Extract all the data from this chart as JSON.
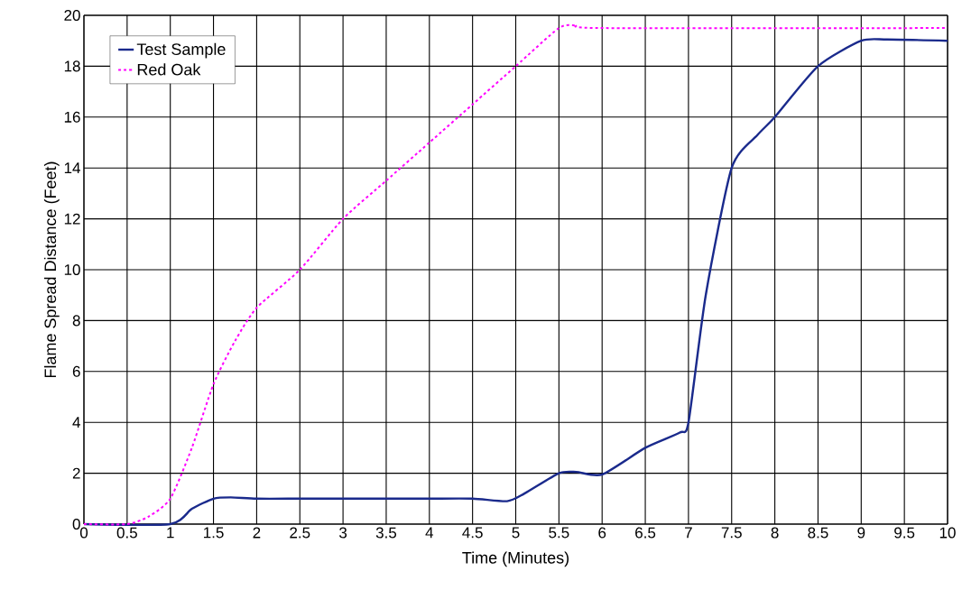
{
  "chart_data": {
    "type": "line",
    "xlabel": "Time (Minutes)",
    "ylabel": "Flame Spread Distance (Feet)",
    "xlim": [
      0,
      10
    ],
    "ylim": [
      0,
      20
    ],
    "xticks": [
      0,
      0.5,
      1,
      1.5,
      2,
      2.5,
      3,
      3.5,
      4,
      4.5,
      5,
      5.5,
      6,
      6.5,
      7,
      7.5,
      8,
      8.5,
      9,
      9.5,
      10
    ],
    "yticks": [
      0,
      2,
      4,
      6,
      8,
      10,
      12,
      14,
      16,
      18,
      20
    ],
    "grid": true,
    "legend": "top left",
    "marker": "none",
    "series": [
      {
        "name": "Test Sample",
        "color": "#1a2a8c",
        "line_style": "solid",
        "x": [
          0,
          1,
          1.25,
          1.5,
          1.7,
          2,
          2.5,
          3,
          3.5,
          4,
          4.5,
          4.9,
          5.1,
          5.5,
          5.7,
          6,
          6.5,
          6.9,
          7,
          7.2,
          7.5,
          7.8,
          8,
          8.5,
          9,
          9.3,
          10
        ],
        "values": [
          0,
          0,
          0.6,
          1,
          1.05,
          1,
          1,
          1,
          1,
          1,
          1,
          0.9,
          1.2,
          2,
          2.05,
          1.95,
          3,
          3.6,
          4,
          9,
          14,
          15.3,
          16,
          18,
          19,
          19.05,
          19
        ]
      },
      {
        "name": "Red Oak",
        "color": "#ff00ff",
        "line_style": "dashed",
        "x": [
          0,
          0.5,
          0.75,
          1,
          1.25,
          1.5,
          1.75,
          2,
          2.5,
          3,
          3.5,
          4,
          4.5,
          5,
          5.5,
          5.7,
          6,
          10
        ],
        "values": [
          0,
          0,
          0.3,
          1,
          3,
          5.5,
          7.2,
          8.5,
          10,
          12,
          13.5,
          15,
          16.5,
          18,
          19.5,
          19.6,
          19.5,
          19.5
        ]
      }
    ]
  }
}
